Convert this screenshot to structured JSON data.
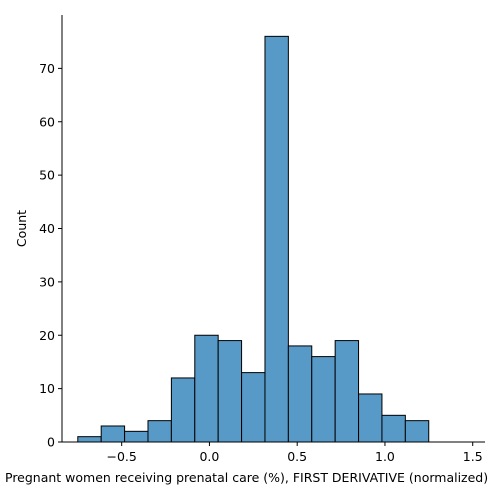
{
  "chart_data": {
    "type": "histogram",
    "xlabel": "Pregnant women receiving prenatal care (%), FIRST DERIVATIVE (normalized)",
    "ylabel": "Count",
    "xlim": [
      -0.84,
      1.57
    ],
    "ylim": [
      0,
      80
    ],
    "x_ticks": [
      -0.5,
      0.0,
      0.5,
      1.0,
      1.5
    ],
    "x_tick_labels": [
      "−0.5",
      "0.0",
      "0.5",
      "1.0",
      "1.5"
    ],
    "y_ticks": [
      0,
      10,
      20,
      30,
      40,
      50,
      60,
      70
    ],
    "y_tick_labels": [
      "0",
      "10",
      "20",
      "30",
      "40",
      "50",
      "60",
      "70"
    ],
    "bin_start": -0.75,
    "bin_width": 0.1333,
    "counts": [
      1,
      3,
      2,
      4,
      12,
      20,
      19,
      13,
      76,
      18,
      16,
      19,
      9,
      5,
      4
    ],
    "bar_color": "#5799c7",
    "edge_color": "#000000",
    "grid": false,
    "spines": [
      "left",
      "bottom"
    ]
  }
}
